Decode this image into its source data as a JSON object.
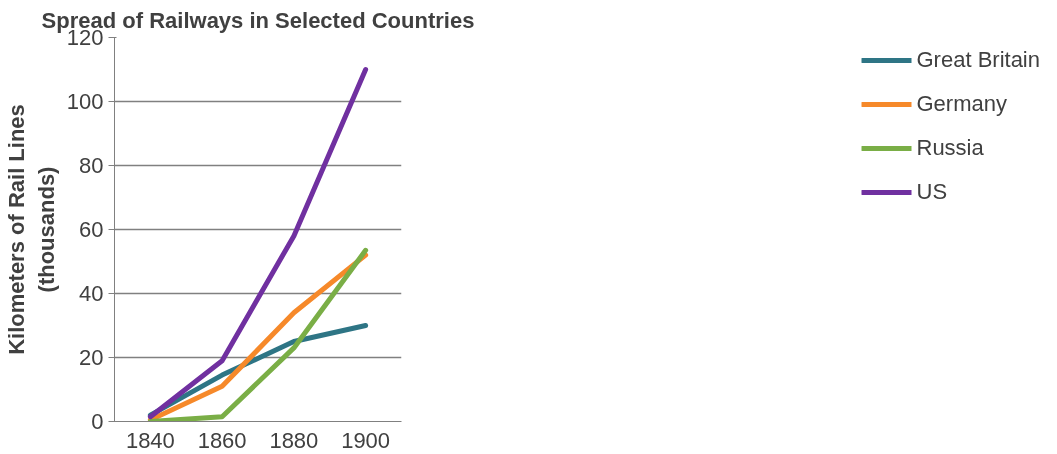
{
  "chart_data": {
    "type": "line",
    "title": "Spread of Railways in Selected Countries",
    "ylabel": "Kilometers of Rail Lines\n(thousands)",
    "categories": [
      "1840",
      "1860",
      "1880",
      "1900"
    ],
    "series": [
      {
        "name": "Great Britain",
        "color": "#2e7585",
        "values": [
          2,
          14.5,
          25,
          30
        ]
      },
      {
        "name": "Germany",
        "color": "#f6892a",
        "values": [
          0.5,
          11,
          34,
          52
        ]
      },
      {
        "name": "Russia",
        "color": "#7aae46",
        "values": [
          0,
          1.5,
          23,
          53.5
        ]
      },
      {
        "name": "US",
        "color": "#7030a0",
        "values": [
          1.5,
          19,
          58,
          110
        ]
      }
    ],
    "ylim": [
      0,
      120
    ],
    "yticks": [
      0,
      20,
      40,
      60,
      80,
      100,
      120
    ],
    "grid": "y",
    "legend": "right",
    "marker": "none",
    "line_style": "solid"
  }
}
